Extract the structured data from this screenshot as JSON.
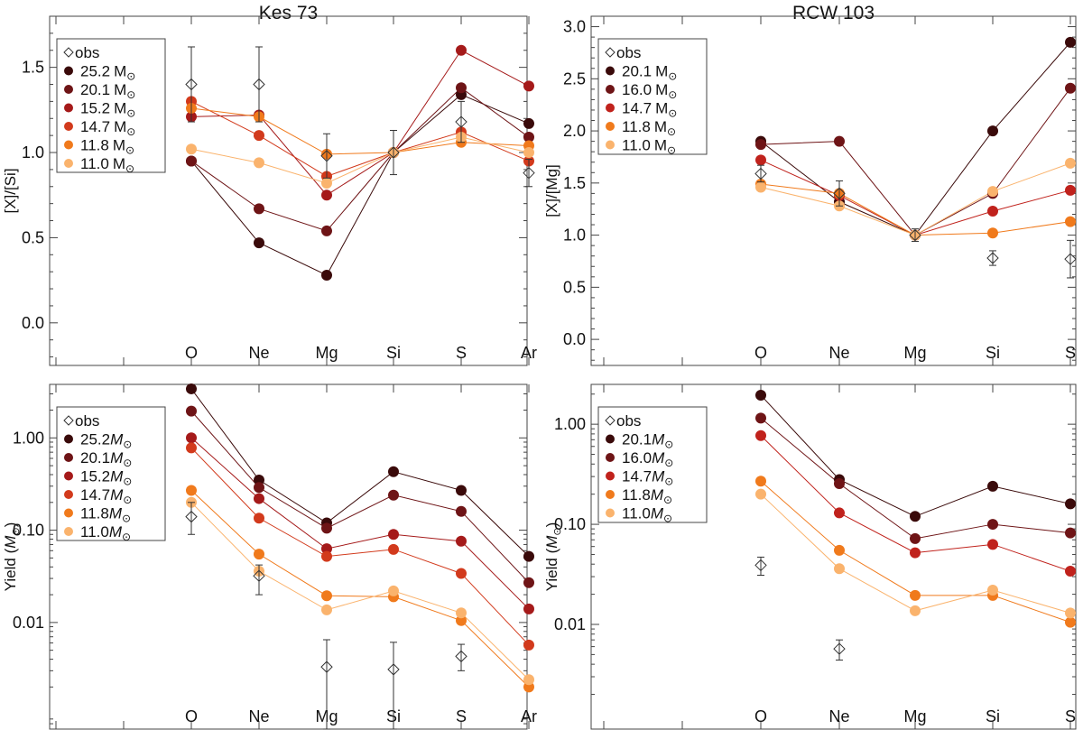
{
  "chart_data": [
    {
      "id": "kes73-ratio",
      "type": "scatter",
      "title": "Kes 73",
      "ylabel": "[X]/[Si]",
      "yscale": "linear",
      "ylim": [
        -0.25,
        1.8
      ],
      "yticks": [
        0.0,
        0.5,
        1.0,
        1.5
      ],
      "ytick_labels": [
        "0.0",
        "0.5",
        "1.0",
        "1.5"
      ],
      "categories": [
        "O",
        "Ne",
        "Mg",
        "Si",
        "S",
        "Ar"
      ],
      "legend_loc": "top-left",
      "obs": {
        "name": "obs",
        "values": [
          1.4,
          1.4,
          0.98,
          1.0,
          1.18,
          0.88
        ],
        "err_low": [
          0.22,
          0.22,
          0.13,
          0.13,
          0.12,
          0.08
        ],
        "err_high": [
          0.22,
          0.22,
          0.13,
          0.13,
          0.12,
          0.08
        ]
      },
      "series": [
        {
          "name": "25.2 M",
          "mass": "25.2",
          "unit_sym": "M",
          "sub": "⊙",
          "color": "#3a0a0a",
          "values": [
            0.95,
            0.47,
            0.28,
            1.0,
            1.34,
            1.17
          ]
        },
        {
          "name": "20.1 M",
          "mass": "20.1",
          "unit_sym": "M",
          "sub": "⊙",
          "color": "#6e1416",
          "values": [
            0.95,
            0.67,
            0.54,
            1.0,
            1.38,
            1.09
          ]
        },
        {
          "name": "15.2 M",
          "mass": "15.2",
          "unit_sym": "M",
          "sub": "⊙",
          "color": "#a51a1a",
          "values": [
            1.21,
            1.22,
            0.75,
            1.0,
            1.6,
            1.39
          ]
        },
        {
          "name": "14.7 M",
          "mass": "14.7",
          "unit_sym": "M",
          "sub": "⊙",
          "color": "#d23a1c",
          "values": [
            1.3,
            1.1,
            0.86,
            1.0,
            1.12,
            0.95
          ]
        },
        {
          "name": "11.8 M",
          "mass": "11.8",
          "unit_sym": "M",
          "sub": "⊙",
          "color": "#f07a1c",
          "values": [
            1.26,
            1.21,
            0.99,
            1.0,
            1.06,
            1.04
          ]
        },
        {
          "name": "11.0 M",
          "mass": "11.0",
          "unit_sym": "M",
          "sub": "⊙",
          "color": "#fab36d",
          "values": [
            1.02,
            0.94,
            0.82,
            1.0,
            1.09,
            1.0
          ]
        }
      ]
    },
    {
      "id": "rcw103-ratio",
      "type": "scatter",
      "title": "RCW 103",
      "ylabel": "[X]/[Mg]",
      "yscale": "linear",
      "ylim": [
        -0.25,
        3.1
      ],
      "yticks": [
        0.0,
        0.5,
        1.0,
        1.5,
        2.0,
        2.5,
        3.0
      ],
      "ytick_labels": [
        "0.0",
        "0.5",
        "1.0",
        "1.5",
        "2.0",
        "2.5",
        "3.0"
      ],
      "categories": [
        "O",
        "Ne",
        "Mg",
        "Si",
        "S"
      ],
      "legend_loc": "top-left",
      "obs": {
        "name": "obs",
        "values": [
          1.59,
          1.4,
          1.0,
          0.78,
          0.77
        ],
        "err_low": [
          0.08,
          0.12,
          0.06,
          0.07,
          0.18
        ],
        "err_high": [
          0.08,
          0.12,
          0.06,
          0.07,
          0.18
        ]
      },
      "series": [
        {
          "name": "20.1 M",
          "mass": "20.1",
          "unit_sym": "M",
          "sub": "⊙",
          "color": "#3a0a0a",
          "values": [
            1.9,
            1.32,
            1.0,
            2.0,
            2.85
          ]
        },
        {
          "name": "16.0 M",
          "mass": "16.0",
          "unit_sym": "M",
          "sub": "⊙",
          "color": "#6e1416",
          "values": [
            1.87,
            1.9,
            1.0,
            1.4,
            2.41
          ]
        },
        {
          "name": "14.7 M",
          "mass": "14.7",
          "unit_sym": "M",
          "sub": "⊙",
          "color": "#c0221c",
          "values": [
            1.72,
            1.38,
            1.0,
            1.23,
            1.43
          ]
        },
        {
          "name": "11.8 M",
          "mass": "11.8",
          "unit_sym": "M",
          "sub": "⊙",
          "color": "#f07a1c",
          "values": [
            1.49,
            1.4,
            1.0,
            1.02,
            1.13
          ]
        },
        {
          "name": "11.0 M",
          "mass": "11.0",
          "unit_sym": "M",
          "sub": "⊙",
          "color": "#fab36d",
          "values": [
            1.46,
            1.28,
            1.0,
            1.42,
            1.69
          ]
        }
      ]
    },
    {
      "id": "kes73-yield",
      "type": "scatter",
      "title": "",
      "ylabel": "Yield (",
      "ylabel_sym": "M",
      "ylabel_sub": "⊙",
      "ylabel_end": ")",
      "yscale": "log",
      "ylim": [
        0.0007,
        3.8
      ],
      "yticks": [
        0.01,
        0.1,
        1.0
      ],
      "ytick_labels": [
        "0.01",
        "0.10",
        "1.00"
      ],
      "categories": [
        "O",
        "Ne",
        "Mg",
        "Si",
        "S",
        "Ar"
      ],
      "legend_loc": "top-left",
      "obs": {
        "name": "obs",
        "values": [
          0.14,
          0.032,
          0.0033,
          0.0031,
          0.0043
        ],
        "err_low": [
          0.05,
          0.012,
          0.0026,
          0.0024,
          0.0013
        ],
        "err_high": [
          0.06,
          0.01,
          0.0032,
          0.003,
          0.0015
        ]
      },
      "series": [
        {
          "name": "25.2 M",
          "mass": "25.2",
          "unit_sym": "M",
          "sub": "⊙",
          "color": "#3a0a0a",
          "values": [
            3.4,
            0.35,
            0.12,
            0.43,
            0.27,
            0.052
          ]
        },
        {
          "name": "20.1 M",
          "mass": "20.1",
          "unit_sym": "M",
          "sub": "⊙",
          "color": "#6e1416",
          "values": [
            1.95,
            0.29,
            0.105,
            0.24,
            0.16,
            0.027
          ]
        },
        {
          "name": "15.2 M",
          "mass": "15.2",
          "unit_sym": "M",
          "sub": "⊙",
          "color": "#a51a1a",
          "values": [
            1.0,
            0.22,
            0.063,
            0.09,
            0.076,
            0.014
          ]
        },
        {
          "name": "14.7 M",
          "mass": "14.7",
          "unit_sym": "M",
          "sub": "⊙",
          "color": "#d23a1c",
          "values": [
            0.78,
            0.135,
            0.052,
            0.062,
            0.034,
            0.0057
          ]
        },
        {
          "name": "11.8 M",
          "mass": "11.8",
          "unit_sym": "M",
          "sub": "⊙",
          "color": "#f07a1c",
          "values": [
            0.27,
            0.055,
            0.0195,
            0.019,
            0.0105,
            0.002
          ]
        },
        {
          "name": "11.0 M",
          "mass": "11.0",
          "unit_sym": "M",
          "sub": "⊙",
          "color": "#fab36d",
          "values": [
            0.2,
            0.036,
            0.0137,
            0.022,
            0.0127,
            0.0024
          ]
        }
      ]
    },
    {
      "id": "rcw103-yield",
      "type": "scatter",
      "title": "",
      "ylabel": "Yield (",
      "ylabel_sym": "M",
      "ylabel_sub": "⊙",
      "ylabel_end": ")",
      "yscale": "log",
      "ylim": [
        0.0009,
        2.5
      ],
      "yticks": [
        0.01,
        0.1,
        1.0
      ],
      "ytick_labels": [
        "0.01",
        "0.10",
        "1.00"
      ],
      "categories": [
        "O",
        "Ne",
        "Mg",
        "Si",
        "S"
      ],
      "legend_loc": "top-left",
      "obs": {
        "name": "obs",
        "values": [
          0.039,
          0.0057
        ],
        "err_low": [
          0.008,
          0.0013
        ],
        "err_high": [
          0.008,
          0.0013
        ]
      },
      "series": [
        {
          "name": "20.1 M",
          "mass": "20.1",
          "unit_sym": "M",
          "sub": "⊙",
          "color": "#3a0a0a",
          "values": [
            1.95,
            0.28,
            0.12,
            0.24,
            0.16
          ]
        },
        {
          "name": "16.0 M",
          "mass": "16.0",
          "unit_sym": "M",
          "sub": "⊙",
          "color": "#6e1416",
          "values": [
            1.15,
            0.255,
            0.072,
            0.1,
            0.082
          ]
        },
        {
          "name": "14.7 M",
          "mass": "14.7",
          "unit_sym": "M",
          "sub": "⊙",
          "color": "#c0221c",
          "values": [
            0.77,
            0.13,
            0.052,
            0.063,
            0.034
          ]
        },
        {
          "name": "11.8 M",
          "mass": "11.8",
          "unit_sym": "M",
          "sub": "⊙",
          "color": "#f07a1c",
          "values": [
            0.27,
            0.055,
            0.0195,
            0.0195,
            0.0105
          ]
        },
        {
          "name": "11.0 M",
          "mass": "11.0",
          "unit_sym": "M",
          "sub": "⊙",
          "color": "#fab36d",
          "values": [
            0.2,
            0.036,
            0.0137,
            0.022,
            0.013
          ]
        }
      ]
    }
  ]
}
